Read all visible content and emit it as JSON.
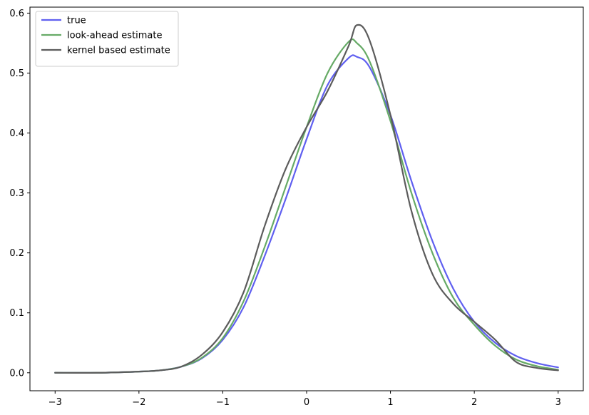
{
  "chart_data": {
    "type": "line",
    "title": "",
    "xlabel": "",
    "ylabel": "",
    "xlim": [
      -3.3,
      3.3
    ],
    "ylim": [
      -0.03,
      0.61
    ],
    "grid": false,
    "legend_placement": "top-left",
    "x_ticks": [
      -3,
      -2,
      -1,
      0,
      1,
      2,
      3
    ],
    "x_tick_labels": [
      "−3",
      "−2",
      "−1",
      "0",
      "1",
      "2",
      "3"
    ],
    "y_ticks": [
      0.0,
      0.1,
      0.2,
      0.3,
      0.4,
      0.5,
      0.6
    ],
    "y_tick_labels": [
      "0.0",
      "0.1",
      "0.2",
      "0.3",
      "0.4",
      "0.5",
      "0.6"
    ],
    "x": [
      -3.0,
      -2.5,
      -2.0,
      -1.75,
      -1.5,
      -1.25,
      -1.0,
      -0.75,
      -0.5,
      -0.25,
      0.0,
      0.25,
      0.5,
      0.6,
      0.75,
      1.0,
      1.25,
      1.5,
      1.75,
      2.0,
      2.25,
      2.5,
      2.75,
      3.0
    ],
    "series": [
      {
        "name": "true",
        "color": "#5f5ff0",
        "values": [
          0.0,
          0.0,
          0.002,
          0.004,
          0.01,
          0.024,
          0.055,
          0.11,
          0.195,
          0.29,
          0.39,
          0.48,
          0.525,
          0.527,
          0.51,
          0.43,
          0.32,
          0.22,
          0.14,
          0.085,
          0.05,
          0.028,
          0.016,
          0.009
        ]
      },
      {
        "name": "look-ahead estimate",
        "color": "#66aa66",
        "values": [
          0.0,
          0.0,
          0.002,
          0.004,
          0.01,
          0.025,
          0.058,
          0.12,
          0.21,
          0.31,
          0.41,
          0.5,
          0.552,
          0.55,
          0.52,
          0.42,
          0.3,
          0.2,
          0.125,
          0.08,
          0.045,
          0.022,
          0.011,
          0.005
        ]
      },
      {
        "name": "kernel based estimate",
        "color": "#5c5c5c",
        "values": [
          0.0,
          0.0,
          0.002,
          0.004,
          0.01,
          0.03,
          0.068,
          0.135,
          0.245,
          0.34,
          0.41,
          0.47,
          0.545,
          0.58,
          0.555,
          0.43,
          0.27,
          0.165,
          0.115,
          0.085,
          0.055,
          0.018,
          0.008,
          0.004
        ]
      }
    ]
  }
}
